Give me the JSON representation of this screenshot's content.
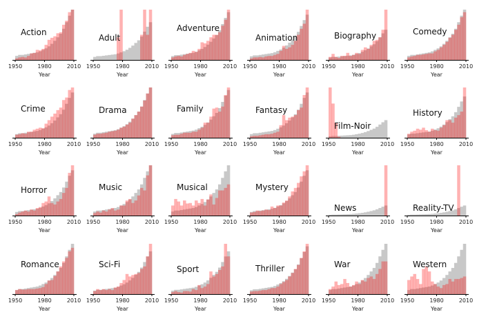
{
  "chart_data": {
    "type": "bar",
    "description_units": "relative frequency per 3-year bin, 1950-2010, gray = all movies, red = genre",
    "xlabel": "Year",
    "xlim": [
      1950,
      2010
    ],
    "xticks": [
      "1950",
      "1980",
      "2010"
    ],
    "bin_starts": [
      1950,
      1953,
      1956,
      1959,
      1962,
      1965,
      1968,
      1971,
      1974,
      1977,
      1980,
      1983,
      1986,
      1989,
      1992,
      1995,
      1998,
      2001,
      2004,
      2007
    ],
    "colors": {
      "all": "#c8c8c8",
      "genre": "#ff0000"
    },
    "all_movies": [
      0.08,
      0.1,
      0.1,
      0.11,
      0.12,
      0.13,
      0.14,
      0.15,
      0.17,
      0.2,
      0.23,
      0.27,
      0.32,
      0.38,
      0.45,
      0.52,
      0.62,
      0.75,
      0.88,
      1.0
    ],
    "panels": [
      {
        "title": "Action",
        "gray_scale": 1.0,
        "values": [
          0.03,
          0.05,
          0.06,
          0.05,
          0.08,
          0.13,
          0.14,
          0.2,
          0.19,
          0.22,
          0.3,
          0.4,
          0.44,
          0.47,
          0.53,
          0.55,
          0.7,
          0.78,
          0.95,
          1.0
        ]
      },
      {
        "title": "Adult",
        "gray_scale": 0.75,
        "values": [
          0,
          0,
          0,
          0,
          0,
          0,
          0,
          0,
          0.45,
          1.0,
          0,
          0,
          0,
          0,
          0,
          0,
          0.5,
          1.0,
          0.5,
          1.0
        ]
      },
      {
        "title": "Adventure",
        "gray_scale": 0.95,
        "values": [
          0.05,
          0.07,
          0.08,
          0.07,
          0.1,
          0.12,
          0.14,
          0.18,
          0.16,
          0.22,
          0.35,
          0.33,
          0.38,
          0.45,
          0.5,
          0.5,
          0.55,
          0.68,
          0.8,
          1.0
        ]
      },
      {
        "title": "Animation",
        "gray_scale": 0.9,
        "values": [
          0.03,
          0.05,
          0.05,
          0.06,
          0.05,
          0.07,
          0.08,
          0.08,
          0.1,
          0.12,
          0.18,
          0.28,
          0.22,
          0.25,
          0.3,
          0.38,
          0.5,
          0.62,
          0.72,
          1.0
        ]
      },
      {
        "title": "Biography",
        "gray_scale": 0.6,
        "values": [
          0.06,
          0.12,
          0.06,
          0.04,
          0.08,
          0.08,
          0.14,
          0.08,
          0.1,
          0.14,
          0.12,
          0.2,
          0.25,
          0.22,
          0.3,
          0.38,
          0.4,
          0.45,
          0.6,
          1.0
        ]
      },
      {
        "title": "Comedy",
        "gray_scale": 1.0,
        "values": [
          0.05,
          0.07,
          0.08,
          0.1,
          0.1,
          0.11,
          0.12,
          0.13,
          0.13,
          0.17,
          0.2,
          0.25,
          0.3,
          0.36,
          0.44,
          0.5,
          0.6,
          0.7,
          0.85,
          0.95
        ]
      },
      {
        "title": "Crime",
        "gray_scale": 0.9,
        "values": [
          0.06,
          0.07,
          0.09,
          0.08,
          0.12,
          0.12,
          0.16,
          0.18,
          0.2,
          0.19,
          0.28,
          0.35,
          0.42,
          0.48,
          0.55,
          0.6,
          0.75,
          0.8,
          0.95,
          1.0
        ]
      },
      {
        "title": "Drama",
        "gray_scale": 1.0,
        "values": [
          0.06,
          0.08,
          0.08,
          0.09,
          0.1,
          0.12,
          0.13,
          0.14,
          0.16,
          0.2,
          0.22,
          0.26,
          0.3,
          0.38,
          0.45,
          0.52,
          0.62,
          0.74,
          0.88,
          1.0
        ]
      },
      {
        "title": "Family",
        "gray_scale": 0.95,
        "values": [
          0.05,
          0.06,
          0.06,
          0.08,
          0.1,
          0.1,
          0.1,
          0.12,
          0.12,
          0.16,
          0.2,
          0.3,
          0.3,
          0.42,
          0.58,
          0.6,
          0.52,
          0.62,
          0.85,
          1.0
        ]
      },
      {
        "title": "Fantasy",
        "gray_scale": 0.9,
        "values": [
          0.03,
          0.04,
          0.04,
          0.05,
          0.06,
          0.07,
          0.07,
          0.08,
          0.1,
          0.12,
          0.25,
          0.45,
          0.35,
          0.4,
          0.42,
          0.45,
          0.55,
          0.6,
          0.85,
          1.0
        ]
      },
      {
        "title": "Film-Noir",
        "gray_scale": 0.35,
        "values": [
          1.0,
          0.68,
          0.3,
          0.02,
          0,
          0,
          0,
          0,
          0,
          0,
          0,
          0,
          0,
          0,
          0,
          0,
          0,
          0,
          0,
          0
        ]
      },
      {
        "title": "History",
        "gray_scale": 0.82,
        "values": [
          0.08,
          0.12,
          0.14,
          0.18,
          0.16,
          0.2,
          0.15,
          0.12,
          0.18,
          0.15,
          0.14,
          0.2,
          0.25,
          0.35,
          0.35,
          0.3,
          0.4,
          0.45,
          0.52,
          1.0
        ]
      },
      {
        "title": "Horror",
        "gray_scale": 0.9,
        "values": [
          0.03,
          0.06,
          0.08,
          0.1,
          0.08,
          0.12,
          0.1,
          0.15,
          0.17,
          0.25,
          0.28,
          0.38,
          0.25,
          0.22,
          0.28,
          0.33,
          0.45,
          0.55,
          0.85,
          1.0
        ]
      },
      {
        "title": "Music",
        "gray_scale": 1.0,
        "values": [
          0.05,
          0.08,
          0.06,
          0.1,
          0.08,
          0.12,
          0.15,
          0.1,
          0.12,
          0.2,
          0.2,
          0.3,
          0.33,
          0.25,
          0.3,
          0.4,
          0.55,
          0.5,
          0.8,
          1.0
        ]
      },
      {
        "title": "Musical",
        "gray_scale": 1.0,
        "values": [
          0.2,
          0.33,
          0.28,
          0.2,
          0.3,
          0.24,
          0.25,
          0.2,
          0.3,
          0.25,
          0.33,
          0.2,
          0.32,
          0.42,
          0.22,
          0.35,
          0.5,
          0.5,
          0.55,
          0.62
        ]
      },
      {
        "title": "Mystery",
        "gray_scale": 0.9,
        "values": [
          0.06,
          0.07,
          0.1,
          0.09,
          0.1,
          0.12,
          0.11,
          0.18,
          0.15,
          0.2,
          0.2,
          0.26,
          0.3,
          0.38,
          0.48,
          0.55,
          0.65,
          0.78,
          0.88,
          1.0
        ]
      },
      {
        "title": "News",
        "gray_scale": 0.2,
        "values": [
          0,
          0,
          0,
          0,
          0,
          0,
          0,
          0,
          0,
          0,
          0,
          0,
          0,
          0,
          0,
          0,
          0,
          0,
          0,
          1.0
        ]
      },
      {
        "title": "Reality-TV",
        "gray_scale": 0.2,
        "values": [
          0,
          0,
          0,
          0,
          0,
          0,
          0,
          0,
          0,
          0,
          0,
          0,
          0,
          0,
          0,
          0,
          0,
          1.0,
          0,
          0
        ]
      },
      {
        "title": "Romance",
        "gray_scale": 1.0,
        "values": [
          0.08,
          0.1,
          0.09,
          0.09,
          0.1,
          0.1,
          0.1,
          0.11,
          0.12,
          0.14,
          0.2,
          0.27,
          0.28,
          0.36,
          0.45,
          0.55,
          0.65,
          0.72,
          0.85,
          0.92
        ]
      },
      {
        "title": "Sci-Fi",
        "gray_scale": 0.85,
        "values": [
          0.06,
          0.1,
          0.08,
          0.1,
          0.08,
          0.1,
          0.08,
          0.13,
          0.15,
          0.22,
          0.28,
          0.4,
          0.35,
          0.38,
          0.4,
          0.42,
          0.5,
          0.55,
          0.75,
          1.0
        ]
      },
      {
        "title": "Sport",
        "gray_scale": 0.85,
        "values": [
          0.04,
          0.06,
          0.04,
          0.03,
          0.06,
          0.06,
          0.05,
          0.1,
          0.08,
          0.18,
          0.12,
          0.15,
          0.2,
          0.45,
          0.35,
          0.4,
          0.48,
          0.55,
          1.0,
          0.75
        ]
      },
      {
        "title": "Thriller",
        "gray_scale": 0.95,
        "values": [
          0.05,
          0.06,
          0.06,
          0.07,
          0.08,
          0.08,
          0.1,
          0.12,
          0.12,
          0.15,
          0.2,
          0.24,
          0.28,
          0.35,
          0.42,
          0.5,
          0.58,
          0.72,
          0.85,
          1.0
        ]
      },
      {
        "title": "War",
        "gray_scale": 1.0,
        "values": [
          0.1,
          0.15,
          0.25,
          0.18,
          0.2,
          0.3,
          0.22,
          0.15,
          0.18,
          0.25,
          0.2,
          0.28,
          0.25,
          0.32,
          0.35,
          0.3,
          0.4,
          0.5,
          0.65,
          0.65
        ]
      },
      {
        "title": "Western",
        "gray_scale": 1.0,
        "values": [
          0.28,
          0.35,
          0.4,
          0.3,
          0.2,
          0.5,
          0.55,
          0.45,
          0.25,
          0.2,
          0.15,
          0.12,
          0.18,
          0.2,
          0.3,
          0.25,
          0.3,
          0.3,
          0.32,
          0.35
        ]
      }
    ]
  }
}
